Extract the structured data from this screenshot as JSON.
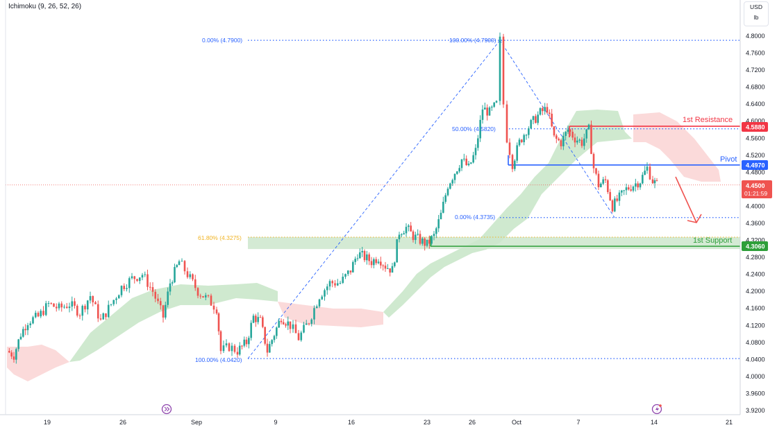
{
  "indicator_label": "Ichimoku (9, 26, 52, 26)",
  "units": {
    "currency": "USD",
    "unit": "lb"
  },
  "colors": {
    "up": "#26a69a",
    "down": "#ef5350",
    "cloud_bull": "#cfe9cf",
    "cloud_bear": "#fbdada",
    "fib": "#2962ff",
    "fib_golden": "#f0b323",
    "resistance": "#f23645",
    "pivot": "#2962ff",
    "support": "#2e9f3a",
    "price": "#ef5350"
  },
  "chart_data": {
    "type": "candlestick",
    "title": "",
    "x_ticks": [
      "19",
      "26",
      "Sep",
      "9",
      "16",
      "23",
      "26",
      "Oct",
      "7",
      "14",
      "21"
    ],
    "y_ticks": [
      "4.8000",
      "4.7600",
      "4.7200",
      "4.6800",
      "4.6400",
      "4.6000",
      "4.5600",
      "4.5200",
      "4.4800",
      "4.4400",
      "4.4000",
      "4.3600",
      "4.3200",
      "4.2800",
      "4.2400",
      "4.2000",
      "4.1600",
      "4.1200",
      "4.0800",
      "4.0400",
      "4.0000",
      "3.9600",
      "3.9200"
    ],
    "ylim": [
      3.915,
      4.815
    ],
    "grid": false,
    "fib_levels": [
      {
        "label": "0.00% (4.7900)",
        "value": 4.79
      },
      {
        "label": "100.00% (4.7900)",
        "value": 4.79
      },
      {
        "label": "50.00% (4.5820)",
        "value": 4.582
      },
      {
        "label": "0.00% (4.3735)",
        "value": 4.3735
      },
      {
        "label": "61.80% (4.3275)",
        "value": 4.3275
      },
      {
        "label": "100.00% (4.0420)",
        "value": 4.042
      }
    ],
    "levels": [
      {
        "name": "1st Resistance",
        "value": 4.588,
        "tag": "4.5880"
      },
      {
        "name": "Pivot",
        "value": 4.497,
        "tag": "4.4970"
      },
      {
        "name": "1st Support",
        "value": 4.306,
        "tag": "4.3060"
      }
    ],
    "current_price": {
      "value": 4.45,
      "label": "4.4500",
      "countdown": "01:21:59"
    }
  }
}
